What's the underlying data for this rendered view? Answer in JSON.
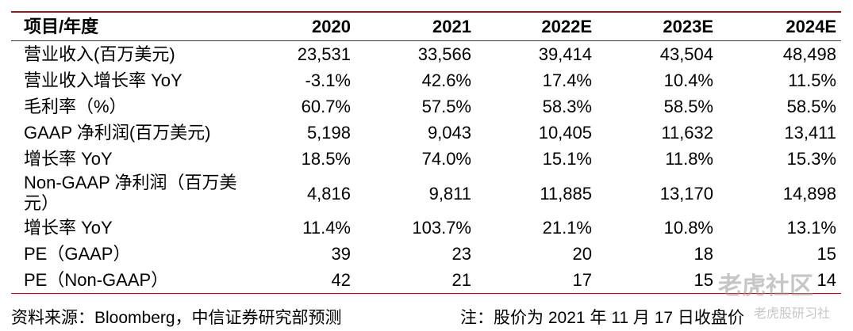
{
  "table": {
    "header": [
      "项目/年度",
      "2020",
      "2021",
      "2022E",
      "2023E",
      "2024E"
    ],
    "rows": [
      [
        "营业收入(百万美元)",
        "23,531",
        "33,566",
        "39,414",
        "43,504",
        "48,498"
      ],
      [
        "营业收入增长率 YoY",
        "-3.1%",
        "42.6%",
        "17.4%",
        "10.4%",
        "11.5%"
      ],
      [
        "毛利率（%）",
        "60.7%",
        "57.5%",
        "58.3%",
        "58.5%",
        "58.5%"
      ],
      [
        "GAAP 净利润(百万美元)",
        "5,198",
        "9,043",
        "10,405",
        "11,632",
        "13,411"
      ],
      [
        "增长率 YoY",
        "18.5%",
        "74.0%",
        "15.1%",
        "11.8%",
        "15.3%"
      ],
      [
        "Non-GAAP 净利润（百万美元）",
        "4,816",
        "9,811",
        "11,885",
        "13,170",
        "14,898"
      ],
      [
        "增长率 YoY",
        "11.4%",
        "103.7%",
        "21.1%",
        "10.8%",
        "13.1%"
      ],
      [
        "PE（GAAP）",
        "39",
        "23",
        "20",
        "18",
        "15"
      ],
      [
        "PE（Non-GAAP）",
        "42",
        "21",
        "17",
        "15",
        "14"
      ]
    ]
  },
  "footer": {
    "source": "资料来源：Bloomberg，中信证券研究部预测",
    "note": "注：股价为 2021 年 11 月 17 日收盘价"
  },
  "watermark": {
    "main": "老虎社区",
    "sub": "老虎股研习社"
  }
}
